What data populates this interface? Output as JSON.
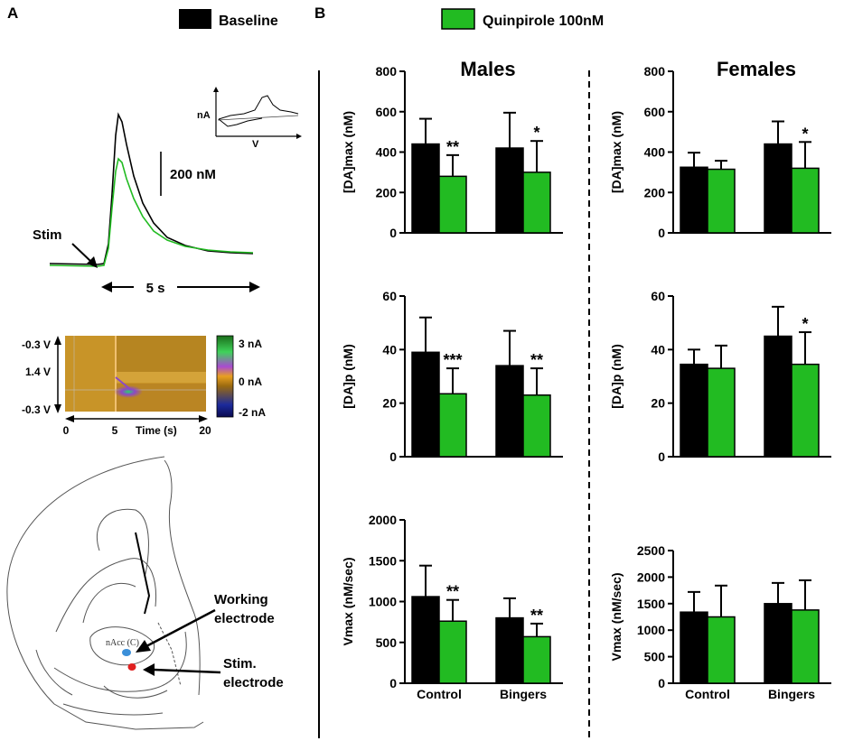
{
  "panel_labels": {
    "a": "A",
    "b": "B"
  },
  "legend": [
    {
      "label": "Baseline",
      "color": "#000000"
    },
    {
      "label": "Quinpirole 100nM",
      "color": "#22bb22"
    }
  ],
  "colors": {
    "baseline": "#000000",
    "quinpirole": "#22bb22"
  },
  "trace_panel": {
    "stim_label": "Stim",
    "scale_label": "200 nM",
    "time_label": "5 s",
    "inset_y": "nA",
    "inset_x": "V"
  },
  "color_plot": {
    "y_top": "-0.3 V",
    "y_mid": "1.4 V",
    "y_bottom": "-0.3 V",
    "x_ticks": [
      "0",
      "5",
      "20"
    ],
    "x_label": "Time (s)",
    "colorbar_ticks": [
      "3 nA",
      "0 nA",
      "-2 nA"
    ]
  },
  "brain": {
    "region_label": "nAcc (C)",
    "working_label": [
      "Working",
      "electrode"
    ],
    "stim_label": [
      "Stim.",
      "electrode"
    ],
    "working_color": "#3b8fd9",
    "stim_color": "#e02020"
  },
  "chart_data": [
    {
      "type": "bar",
      "sex": "Males",
      "title": "Males",
      "ylabel": "[DA]max (nM)",
      "categories": [
        "Control",
        "Bingers"
      ],
      "ylim": [
        0,
        800
      ],
      "yticks": [
        "0",
        "200",
        "400",
        "600",
        "800"
      ],
      "series": [
        {
          "name": "Baseline",
          "values": [
            440,
            420
          ],
          "errors": [
            125,
            175
          ]
        },
        {
          "name": "Quinpirole 100nM",
          "values": [
            280,
            300
          ],
          "errors": [
            105,
            155
          ]
        }
      ],
      "significance": [
        "**",
        "*"
      ]
    },
    {
      "type": "bar",
      "sex": "Females",
      "title": "Females",
      "ylabel": "[DA]max (nM)",
      "categories": [
        "Control",
        "Bingers"
      ],
      "ylim": [
        0,
        800
      ],
      "yticks": [
        "0",
        "200",
        "400",
        "600",
        "800"
      ],
      "series": [
        {
          "name": "Baseline",
          "values": [
            325,
            440
          ],
          "errors": [
            72,
            112
          ]
        },
        {
          "name": "Quinpirole 100nM",
          "values": [
            315,
            320
          ],
          "errors": [
            42,
            130
          ]
        }
      ],
      "significance": [
        "",
        "*"
      ]
    },
    {
      "type": "bar",
      "sex": "Males",
      "title": "",
      "ylabel": "[DA]p (nM)",
      "categories": [
        "Control",
        "Bingers"
      ],
      "ylim": [
        0,
        60
      ],
      "yticks": [
        "0",
        "20",
        "40",
        "60"
      ],
      "series": [
        {
          "name": "Baseline",
          "values": [
            39,
            34
          ],
          "errors": [
            13,
            13
          ]
        },
        {
          "name": "Quinpirole 100nM",
          "values": [
            23.5,
            23
          ],
          "errors": [
            9.5,
            10
          ]
        }
      ],
      "significance": [
        "***",
        "**"
      ]
    },
    {
      "type": "bar",
      "sex": "Females",
      "title": "",
      "ylabel": "[DA]p (nM)",
      "categories": [
        "Control",
        "Bingers"
      ],
      "ylim": [
        0,
        60
      ],
      "yticks": [
        "0",
        "20",
        "40",
        "60"
      ],
      "series": [
        {
          "name": "Baseline",
          "values": [
            34.5,
            45
          ],
          "errors": [
            5.5,
            11
          ]
        },
        {
          "name": "Quinpirole 100nM",
          "values": [
            33,
            34.5
          ],
          "errors": [
            8.5,
            12
          ]
        }
      ],
      "significance": [
        "",
        "*"
      ]
    },
    {
      "type": "bar",
      "sex": "Males",
      "title": "",
      "ylabel": "Vmax (nM/sec)",
      "categories": [
        "Control",
        "Bingers"
      ],
      "ylim": [
        0,
        2000
      ],
      "yticks": [
        "0",
        "500",
        "1000",
        "1500",
        "2000"
      ],
      "series": [
        {
          "name": "Baseline",
          "values": [
            1060,
            800
          ],
          "errors": [
            380,
            240
          ]
        },
        {
          "name": "Quinpirole 100nM",
          "values": [
            760,
            570
          ],
          "errors": [
            260,
            160
          ]
        }
      ],
      "significance": [
        "**",
        "**"
      ]
    },
    {
      "type": "bar",
      "sex": "Females",
      "title": "",
      "ylabel": "Vmax (nM/sec)",
      "categories": [
        "Control",
        "Bingers"
      ],
      "ylim": [
        0,
        2500
      ],
      "yticks": [
        "0",
        "500",
        "1000",
        "1500",
        "2000",
        "2500"
      ],
      "series": [
        {
          "name": "Baseline",
          "values": [
            1340,
            1500
          ],
          "errors": [
            380,
            390
          ]
        },
        {
          "name": "Quinpirole 100nM",
          "values": [
            1250,
            1380
          ],
          "errors": [
            590,
            560
          ]
        }
      ],
      "significance": [
        "",
        ""
      ]
    }
  ]
}
